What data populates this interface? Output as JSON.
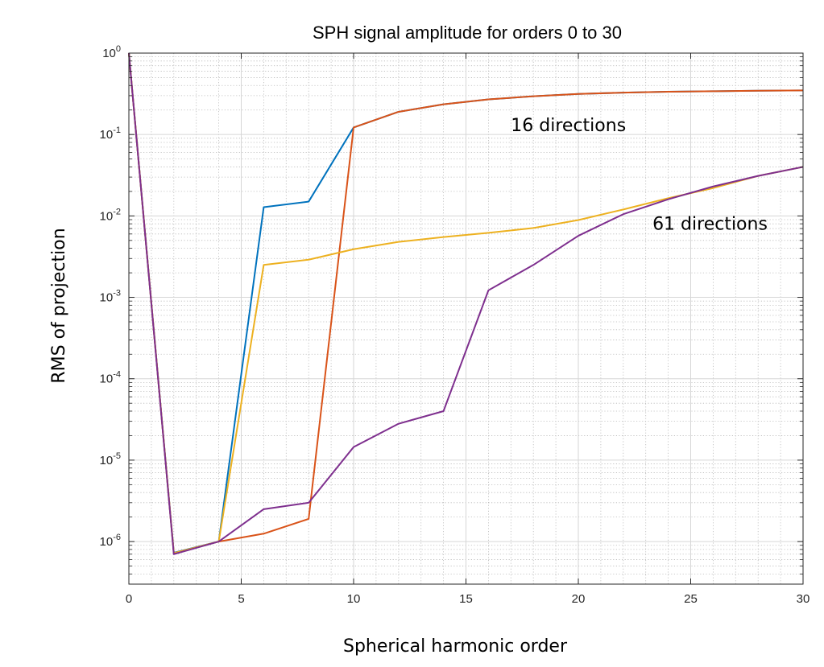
{
  "chart_data": {
    "type": "line",
    "title": "SPH signal amplitude for orders 0 to 30",
    "xlabel": "Spherical harmonic order",
    "ylabel": "RMS of projection",
    "xlim": [
      0,
      30
    ],
    "ylim": [
      3e-07,
      1
    ],
    "yscale": "log",
    "grid": true,
    "minor_grid": true,
    "x_ticks": [
      0,
      5,
      10,
      15,
      20,
      25,
      30
    ],
    "y_ticks": [
      {
        "base": "10",
        "exp": "-6",
        "value": 1e-06
      },
      {
        "base": "10",
        "exp": "-5",
        "value": 1e-05
      },
      {
        "base": "10",
        "exp": "-4",
        "value": 0.0001
      },
      {
        "base": "10",
        "exp": "-3",
        "value": 0.001
      },
      {
        "base": "10",
        "exp": "-2",
        "value": 0.01
      },
      {
        "base": "10",
        "exp": "-1",
        "value": 0.1
      },
      {
        "base": "10",
        "exp": "0",
        "value": 1
      }
    ],
    "x": [
      0,
      2,
      4,
      6,
      8,
      10,
      12,
      14,
      16,
      18,
      20,
      22,
      24,
      26,
      28,
      30
    ],
    "series": [
      {
        "color": "#0072BD",
        "values": [
          1,
          7.3e-07,
          1e-06,
          0.0128,
          0.015,
          0.122,
          0.19,
          0.235,
          0.27,
          0.295,
          0.315,
          0.327,
          0.335,
          0.34,
          0.345,
          0.348
        ]
      },
      {
        "color": "#D95319",
        "values": [
          1,
          7.2e-07,
          1e-06,
          1.25e-06,
          1.9e-06,
          0.122,
          0.19,
          0.235,
          0.27,
          0.295,
          0.315,
          0.327,
          0.335,
          0.34,
          0.345,
          0.348
        ]
      },
      {
        "color": "#EDB120",
        "values": [
          1,
          7.2e-07,
          1e-06,
          0.0025,
          0.0029,
          0.0039,
          0.0048,
          0.0055,
          0.0062,
          0.0071,
          0.0089,
          0.012,
          0.0165,
          0.022,
          0.031,
          0.04
        ]
      },
      {
        "color": "#7E2F8E",
        "values": [
          1,
          7e-07,
          1e-06,
          2.5e-06,
          3e-06,
          1.45e-05,
          2.8e-05,
          4e-05,
          0.00122,
          0.0025,
          0.0057,
          0.0105,
          0.016,
          0.023,
          0.031,
          0.04
        ]
      }
    ],
    "annotations": [
      {
        "text": "16 directions",
        "x": 17,
        "y": 0.11
      },
      {
        "text": "61 directions",
        "x": 23.3,
        "y": 0.0068
      }
    ]
  }
}
